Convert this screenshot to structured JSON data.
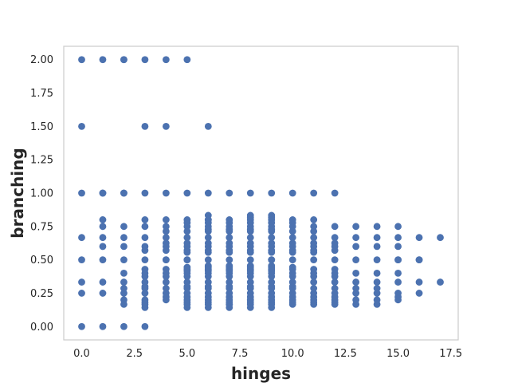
{
  "chart_data": {
    "type": "scatter",
    "title": "",
    "xlabel": "hinges",
    "ylabel": "branching",
    "xlim": [
      -0.85,
      17.85
    ],
    "ylim": [
      -0.1,
      2.1
    ],
    "xticks": [
      "0.0",
      "2.5",
      "5.0",
      "7.5",
      "10.0",
      "12.5",
      "15.0",
      "17.5"
    ],
    "yticks": [
      "0.00",
      "0.25",
      "0.50",
      "0.75",
      "1.00",
      "1.25",
      "1.50",
      "1.75",
      "2.00"
    ],
    "grid": false,
    "marker_color": "#4c72b0",
    "x": [
      0,
      0,
      0,
      0,
      0,
      0,
      0,
      0,
      1,
      1,
      1,
      1,
      1,
      1,
      1,
      1,
      1,
      1,
      1,
      2,
      2,
      2,
      2,
      2,
      2,
      2,
      2,
      2,
      2,
      2,
      2,
      2,
      2,
      2,
      3,
      3,
      3,
      3,
      3,
      3,
      3,
      3,
      3,
      3,
      3,
      3,
      3,
      3,
      3,
      3,
      3,
      3,
      3,
      3,
      3,
      4,
      4,
      4,
      4,
      4,
      4,
      4,
      4,
      4,
      4,
      4,
      4,
      4,
      4,
      4,
      4,
      4,
      4,
      4,
      4,
      5,
      5,
      5,
      5,
      5,
      5,
      5,
      5,
      5,
      5,
      5,
      5,
      5,
      5,
      5,
      5,
      5,
      5,
      5,
      5,
      5,
      5,
      5,
      5,
      5,
      5,
      5,
      6,
      6,
      6,
      6,
      6,
      6,
      6,
      6,
      6,
      6,
      6,
      6,
      6,
      6,
      6,
      6,
      6,
      6,
      6,
      6,
      6,
      6,
      6,
      6,
      6,
      6,
      6,
      6,
      6,
      6,
      7,
      7,
      7,
      7,
      7,
      7,
      7,
      7,
      7,
      7,
      7,
      7,
      7,
      7,
      7,
      7,
      7,
      7,
      7,
      7,
      7,
      7,
      7,
      7,
      7,
      7,
      7,
      7,
      8,
      8,
      8,
      8,
      8,
      8,
      8,
      8,
      8,
      8,
      8,
      8,
      8,
      8,
      8,
      8,
      8,
      8,
      8,
      8,
      8,
      8,
      8,
      8,
      8,
      8,
      8,
      8,
      8,
      8,
      9,
      9,
      9,
      9,
      9,
      9,
      9,
      9,
      9,
      9,
      9,
      9,
      9,
      9,
      9,
      9,
      9,
      9,
      9,
      9,
      9,
      9,
      9,
      9,
      9,
      9,
      9,
      9,
      9,
      9,
      10,
      10,
      10,
      10,
      10,
      10,
      10,
      10,
      10,
      10,
      10,
      10,
      10,
      10,
      10,
      10,
      10,
      10,
      10,
      10,
      10,
      10,
      10,
      11,
      11,
      11,
      11,
      11,
      11,
      11,
      11,
      11,
      11,
      11,
      11,
      11,
      11,
      11,
      11,
      11,
      11,
      11,
      11,
      12,
      12,
      12,
      12,
      12,
      12,
      12,
      12,
      12,
      12,
      12,
      12,
      12,
      12,
      12,
      12,
      12,
      13,
      13,
      13,
      13,
      13,
      13,
      13,
      13,
      13,
      13,
      14,
      14,
      14,
      14,
      14,
      14,
      14,
      14,
      14,
      14,
      15,
      15,
      15,
      15,
      15,
      15,
      15,
      15,
      15,
      15,
      16,
      16,
      16,
      16,
      16,
      17,
      17
    ],
    "y": [
      0,
      0.25,
      0.333,
      0.5,
      0.667,
      1,
      1.5,
      2,
      0,
      0.25,
      0.333,
      0.5,
      0.6,
      0.667,
      0.75,
      0.8,
      1,
      1,
      2,
      0,
      0.2,
      0.25,
      0.333,
      0.4,
      0.5,
      0.6,
      0.667,
      0.75,
      1,
      1,
      2,
      2,
      0.167,
      0.286,
      0,
      0.167,
      0.2,
      0.25,
      0.333,
      0.4,
      0.5,
      0.6,
      0.667,
      0.75,
      0.8,
      1,
      1.5,
      2,
      0.143,
      0.182,
      0.286,
      0.3,
      0.375,
      0.429,
      0.571,
      0.2,
      0.25,
      0.333,
      0.4,
      0.5,
      0.6,
      0.667,
      0.75,
      0.8,
      1,
      1.5,
      2,
      0.222,
      0.286,
      0.375,
      0.429,
      0.571,
      0.625,
      0.714,
      0.5,
      0.167,
      0.2,
      0.25,
      0.333,
      0.4,
      0.5,
      0.6,
      0.667,
      0.75,
      0.8,
      1,
      2,
      0.143,
      0.182,
      0.222,
      0.286,
      0.3,
      0.375,
      0.417,
      0.429,
      0.444,
      0.556,
      0.571,
      0.625,
      0.714,
      0.778,
      0.5,
      0.167,
      0.2,
      0.25,
      0.333,
      0.4,
      0.5,
      0.6,
      0.667,
      0.75,
      0.8,
      0.833,
      1,
      1.5,
      0.143,
      0.182,
      0.222,
      0.286,
      0.3,
      0.375,
      0.417,
      0.429,
      0.444,
      0.455,
      0.556,
      0.571,
      0.625,
      0.714,
      0.727,
      0.778,
      0.8,
      0.167,
      0.2,
      0.25,
      0.333,
      0.4,
      0.5,
      0.6,
      0.667,
      0.75,
      0.8,
      1,
      0.143,
      0.182,
      0.222,
      0.286,
      0.3,
      0.375,
      0.417,
      0.429,
      0.444,
      0.455,
      0.556,
      0.571,
      0.625,
      0.714,
      0.727,
      0.778,
      0.167,
      0.167,
      0.2,
      0.25,
      0.333,
      0.4,
      0.5,
      0.6,
      0.667,
      0.75,
      0.8,
      0.833,
      1,
      0.143,
      0.182,
      0.222,
      0.286,
      0.3,
      0.375,
      0.417,
      0.429,
      0.444,
      0.455,
      0.556,
      0.571,
      0.625,
      0.714,
      0.727,
      0.778,
      0.818,
      0.2,
      0.167,
      0.2,
      0.25,
      0.333,
      0.4,
      0.5,
      0.6,
      0.667,
      0.75,
      0.8,
      0.833,
      1,
      0.143,
      0.182,
      0.222,
      0.286,
      0.3,
      0.375,
      0.417,
      0.429,
      0.444,
      0.455,
      0.556,
      0.571,
      0.625,
      0.714,
      0.727,
      0.778,
      0.818,
      0.5,
      0.167,
      0.2,
      0.25,
      0.333,
      0.4,
      0.5,
      0.6,
      0.667,
      0.75,
      0.8,
      1,
      0.182,
      0.222,
      0.286,
      0.3,
      0.375,
      0.429,
      0.444,
      0.556,
      0.571,
      0.625,
      0.714,
      0.778,
      0.167,
      0.2,
      0.25,
      0.333,
      0.4,
      0.5,
      0.6,
      0.667,
      0.75,
      0.8,
      1,
      0.182,
      0.222,
      0.286,
      0.375,
      0.429,
      0.556,
      0.571,
      0.625,
      0.714,
      0.167,
      0.2,
      0.25,
      0.333,
      0.4,
      0.5,
      0.6,
      0.667,
      0.75,
      1,
      0.182,
      0.222,
      0.286,
      0.375,
      0.429,
      0.571,
      0.625,
      0.167,
      0.2,
      0.25,
      0.333,
      0.4,
      0.5,
      0.6,
      0.667,
      0.75,
      0.286,
      0.167,
      0.2,
      0.25,
      0.333,
      0.4,
      0.5,
      0.6,
      0.667,
      0.75,
      0.286,
      0.2,
      0.25,
      0.333,
      0.4,
      0.5,
      0.6,
      0.667,
      0.75,
      0.222,
      0.5,
      0.25,
      0.333,
      0.5,
      0.5,
      0.667,
      0.333,
      0.667
    ]
  }
}
